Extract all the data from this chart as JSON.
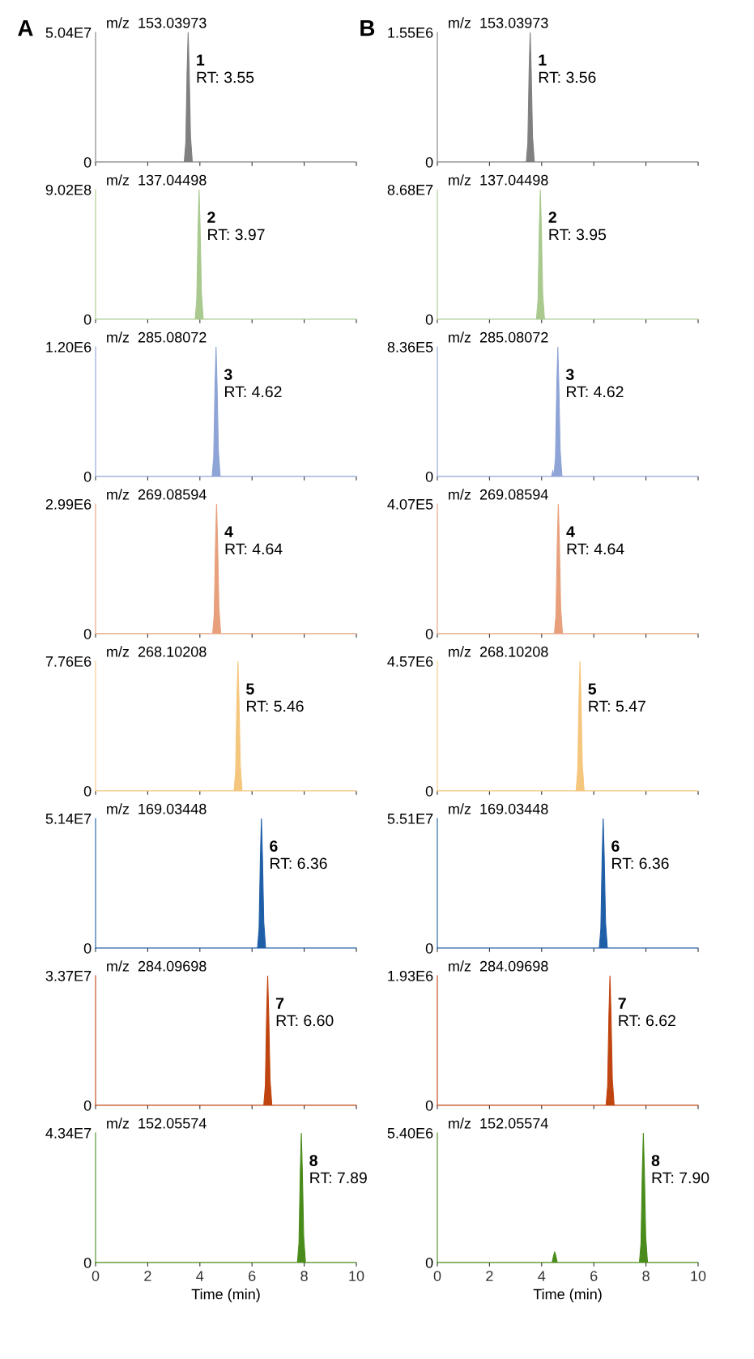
{
  "chart_data": [
    {
      "type": "area",
      "title": "m/z  153.03973",
      "annotations": [
        "A",
        "1",
        "RT: 3.55"
      ],
      "xlim": [
        0,
        10
      ],
      "xticks": [
        0,
        2,
        4,
        6,
        8,
        10
      ],
      "ylim": [
        0,
        50400000.0
      ],
      "yticks": [
        0,
        {
          "value": 50400000.0,
          "label": "5.04E7"
        }
      ],
      "tick_labels": "y",
      "series": [
        {
          "color": "#808080",
          "x": [
            0,
            3.4,
            3.46,
            3.51,
            3.55,
            3.59,
            3.64,
            3.71,
            10
          ],
          "values": [
            0,
            0,
            7600000.0,
            35300000.0,
            50400000.0,
            35300000.0,
            10100000.0,
            0,
            0
          ]
        }
      ]
    },
    {
      "type": "area",
      "title": "m/z  153.03973",
      "annotations": [
        "B",
        "1",
        "RT: 3.56"
      ],
      "xlim": [
        0,
        10
      ],
      "xticks": [
        0,
        2,
        4,
        6,
        8,
        10
      ],
      "ylim": [
        0,
        1550000.0
      ],
      "yticks": [
        0,
        {
          "value": 1550000.0,
          "label": "1.55E6"
        }
      ],
      "tick_labels": "y",
      "series": [
        {
          "color": "#808080",
          "x": [
            0,
            3.41,
            3.47,
            3.52,
            3.56,
            3.6,
            3.65,
            3.72,
            10
          ],
          "values": [
            0,
            0,
            230000.0,
            1090000.0,
            1550000.0,
            1090000.0,
            310000.0,
            0,
            0
          ]
        }
      ]
    },
    {
      "type": "area",
      "title": "m/z  137.04498",
      "annotations": [
        "2",
        "RT: 3.97"
      ],
      "xlim": [
        0,
        10
      ],
      "xticks": [
        0,
        2,
        4,
        6,
        8,
        10
      ],
      "ylim": [
        0,
        902000000.0
      ],
      "yticks": [
        0,
        {
          "value": 902000000.0,
          "label": "9.02E8"
        }
      ],
      "tick_labels": "y",
      "series": [
        {
          "color": "#a9c98f",
          "x": [
            0,
            3.82,
            3.88,
            3.93,
            3.97,
            4.01,
            4.06,
            4.13,
            10
          ],
          "values": [
            0,
            0,
            135000000.0,
            631000000.0,
            902000000.0,
            631000000.0,
            180000000.0,
            0,
            0
          ]
        }
      ]
    },
    {
      "type": "area",
      "title": "m/z  137.04498",
      "annotations": [
        "2",
        "RT: 3.95"
      ],
      "xlim": [
        0,
        10
      ],
      "xticks": [
        0,
        2,
        4,
        6,
        8,
        10
      ],
      "ylim": [
        0,
        86800000.0
      ],
      "yticks": [
        0,
        {
          "value": 86800000.0,
          "label": "8.68E7"
        }
      ],
      "tick_labels": "y",
      "series": [
        {
          "color": "#a9c98f",
          "x": [
            0,
            3.8,
            3.86,
            3.91,
            3.95,
            3.99,
            4.04,
            4.11,
            10
          ],
          "values": [
            0,
            0,
            13000000.0,
            60800000.0,
            86800000.0,
            60800000.0,
            17400000.0,
            0,
            0
          ]
        }
      ]
    },
    {
      "type": "area",
      "title": "m/z  285.08072",
      "annotations": [
        "3",
        "RT: 4.62"
      ],
      "xlim": [
        0,
        10
      ],
      "xticks": [
        0,
        2,
        4,
        6,
        8,
        10
      ],
      "ylim": [
        0,
        1200000.0
      ],
      "yticks": [
        0,
        {
          "value": 1200000.0,
          "label": "1.20E6"
        }
      ],
      "tick_labels": "y",
      "series": [
        {
          "color": "#8ea4d6",
          "x": [
            0,
            4.47,
            4.53,
            4.58,
            4.62,
            4.66,
            4.71,
            4.78,
            10
          ],
          "values": [
            0,
            0,
            180000.0,
            840000.0,
            1200000.0,
            840000.0,
            240000.0,
            0,
            0
          ]
        }
      ]
    },
    {
      "type": "area",
      "title": "m/z  285.08072",
      "annotations": [
        "3",
        "RT: 4.62"
      ],
      "xlim": [
        0,
        10
      ],
      "xticks": [
        0,
        2,
        4,
        6,
        8,
        10
      ],
      "ylim": [
        0,
        836000.0
      ],
      "yticks": [
        0,
        {
          "value": 836000.0,
          "label": "8.36E5"
        }
      ],
      "tick_labels": "y",
      "series": [
        {
          "color": "#8ea4d6",
          "x": [
            0,
            4.38,
            4.43,
            4.46,
            4.47,
            4.53,
            4.58,
            4.62,
            4.66,
            4.71,
            4.78,
            10
          ],
          "values": [
            0,
            0,
            40000.0,
            0,
            0,
            125000.0,
            585000.0,
            836000.0,
            585000.0,
            167000.0,
            0,
            0
          ]
        }
      ]
    },
    {
      "type": "area",
      "title": "m/z  269.08594",
      "annotations": [
        "4",
        "RT: 4.64"
      ],
      "xlim": [
        0,
        10
      ],
      "xticks": [
        0,
        2,
        4,
        6,
        8,
        10
      ],
      "ylim": [
        0,
        2990000.0
      ],
      "yticks": [
        0,
        {
          "value": 2990000.0,
          "label": "2.99E6"
        }
      ],
      "tick_labels": "y",
      "series": [
        {
          "color": "#e8a07c",
          "x": [
            0,
            4.49,
            4.55,
            4.6,
            4.64,
            4.68,
            4.73,
            4.8,
            10
          ],
          "values": [
            0,
            0,
            450000.0,
            2090000.0,
            2990000.0,
            2090000.0,
            600000.0,
            0,
            0
          ]
        }
      ]
    },
    {
      "type": "area",
      "title": "m/z  269.08594",
      "annotations": [
        "4",
        "RT: 4.64"
      ],
      "xlim": [
        0,
        10
      ],
      "xticks": [
        0,
        2,
        4,
        6,
        8,
        10
      ],
      "ylim": [
        0,
        407000.0
      ],
      "yticks": [
        0,
        {
          "value": 407000.0,
          "label": "4.07E5"
        }
      ],
      "tick_labels": "y",
      "series": [
        {
          "color": "#e8a07c",
          "x": [
            0,
            4.49,
            4.55,
            4.6,
            4.64,
            4.68,
            4.73,
            4.8,
            10
          ],
          "values": [
            0,
            0,
            61000.0,
            285000.0,
            407000.0,
            285000.0,
            81000.0,
            0,
            0
          ]
        }
      ]
    },
    {
      "type": "area",
      "title": "m/z  268.10208",
      "annotations": [
        "5",
        "RT: 5.46"
      ],
      "xlim": [
        0,
        10
      ],
      "xticks": [
        0,
        2,
        4,
        6,
        8,
        10
      ],
      "ylim": [
        0,
        7760000.0
      ],
      "yticks": [
        0,
        {
          "value": 7760000.0,
          "label": "7.76E6"
        }
      ],
      "tick_labels": "y",
      "series": [
        {
          "color": "#f5c77e",
          "x": [
            0,
            5.31,
            5.37,
            5.42,
            5.46,
            5.5,
            5.55,
            5.62,
            10
          ],
          "values": [
            0,
            0,
            1160000.0,
            5430000.0,
            7760000.0,
            5430000.0,
            1550000.0,
            0,
            0
          ]
        }
      ]
    },
    {
      "type": "area",
      "title": "m/z  268.10208",
      "annotations": [
        "5",
        "RT: 5.47"
      ],
      "xlim": [
        0,
        10
      ],
      "xticks": [
        0,
        2,
        4,
        6,
        8,
        10
      ],
      "ylim": [
        0,
        4570000.0
      ],
      "yticks": [
        0,
        {
          "value": 4570000.0,
          "label": "4.57E6"
        }
      ],
      "tick_labels": "y",
      "series": [
        {
          "color": "#f5c77e",
          "x": [
            0,
            5.32,
            5.38,
            5.43,
            5.47,
            5.51,
            5.56,
            5.63,
            10
          ],
          "values": [
            0,
            0,
            690000.0,
            3200000.0,
            4570000.0,
            3200000.0,
            910000.0,
            0,
            0
          ]
        }
      ]
    },
    {
      "type": "area",
      "title": "m/z  169.03448",
      "annotations": [
        "6",
        "RT: 6.36"
      ],
      "xlim": [
        0,
        10
      ],
      "xticks": [
        0,
        2,
        4,
        6,
        8,
        10
      ],
      "ylim": [
        0,
        51400000.0
      ],
      "yticks": [
        0,
        {
          "value": 51400000.0,
          "label": "5.14E7"
        }
      ],
      "tick_labels": "y",
      "series": [
        {
          "color": "#1f5fa8",
          "x": [
            0,
            6.21,
            6.27,
            6.32,
            6.36,
            6.4,
            6.45,
            6.52,
            10
          ],
          "values": [
            0,
            0,
            7700000.0,
            36000000.0,
            51400000.0,
            36000000.0,
            10300000.0,
            0,
            0
          ]
        }
      ]
    },
    {
      "type": "area",
      "title": "m/z  169.03448",
      "annotations": [
        "6",
        "RT: 6.36"
      ],
      "xlim": [
        0,
        10
      ],
      "xticks": [
        0,
        2,
        4,
        6,
        8,
        10
      ],
      "ylim": [
        0,
        55100000.0
      ],
      "yticks": [
        0,
        {
          "value": 55100000.0,
          "label": "5.51E7"
        }
      ],
      "tick_labels": "y",
      "series": [
        {
          "color": "#1f5fa8",
          "x": [
            0,
            6.21,
            6.27,
            6.32,
            6.36,
            6.4,
            6.45,
            6.52,
            10
          ],
          "values": [
            0,
            0,
            8300000.0,
            38600000.0,
            55100000.0,
            38600000.0,
            11000000.0,
            0,
            0
          ]
        }
      ]
    },
    {
      "type": "area",
      "title": "m/z  284.09698",
      "annotations": [
        "7",
        "RT: 6.60"
      ],
      "xlim": [
        0,
        10
      ],
      "xticks": [
        0,
        2,
        4,
        6,
        8,
        10
      ],
      "ylim": [
        0,
        33700000.0
      ],
      "yticks": [
        0,
        {
          "value": 33700000.0,
          "label": "3.37E7"
        }
      ],
      "tick_labels": "y",
      "series": [
        {
          "color": "#c0440f",
          "x": [
            0,
            6.45,
            6.51,
            6.56,
            6.6,
            6.64,
            6.69,
            6.76,
            10
          ],
          "values": [
            0,
            0,
            5100000.0,
            23600000.0,
            33700000.0,
            23600000.0,
            6700000.0,
            0,
            0
          ]
        }
      ]
    },
    {
      "type": "area",
      "title": "m/z  284.09698",
      "annotations": [
        "7",
        "RT: 6.62"
      ],
      "xlim": [
        0,
        10
      ],
      "xticks": [
        0,
        2,
        4,
        6,
        8,
        10
      ],
      "ylim": [
        0,
        1930000.0
      ],
      "yticks": [
        0,
        {
          "value": 1930000.0,
          "label": "1.93E6"
        }
      ],
      "tick_labels": "y",
      "series": [
        {
          "color": "#c0440f",
          "x": [
            0,
            6.47,
            6.53,
            6.58,
            6.62,
            6.66,
            6.71,
            6.78,
            10
          ],
          "values": [
            0,
            0,
            290000.0,
            1350000.0,
            1930000.0,
            1350000.0,
            390000.0,
            0,
            0
          ]
        }
      ]
    },
    {
      "type": "area",
      "title": "m/z  152.05574",
      "annotations": [
        "8",
        "RT: 7.89"
      ],
      "xlabel": "Time (min)",
      "xlim": [
        0,
        10
      ],
      "xticks": [
        0,
        2,
        4,
        6,
        8,
        10
      ],
      "ylim": [
        0,
        43400000.0
      ],
      "yticks": [
        0,
        {
          "value": 43400000.0,
          "label": "4.34E7"
        }
      ],
      "series": [
        {
          "color": "#4a8c1c",
          "x": [
            0,
            7.74,
            7.8,
            7.85,
            7.89,
            7.93,
            7.98,
            8.05,
            10
          ],
          "values": [
            0,
            0,
            6500000.0,
            30400000.0,
            43400000.0,
            30400000.0,
            8700000.0,
            0,
            0
          ]
        }
      ]
    },
    {
      "type": "area",
      "title": "m/z  152.05574",
      "annotations": [
        "8",
        "RT: 7.90"
      ],
      "xlabel": "Time (min)",
      "xlim": [
        0,
        10
      ],
      "xticks": [
        0,
        2,
        4,
        6,
        8,
        10
      ],
      "ylim": [
        0,
        5400000.0
      ],
      "yticks": [
        0,
        {
          "value": 5400000.0,
          "label": "5.40E6"
        }
      ],
      "series": [
        {
          "color": "#4a8c1c",
          "x": [
            0,
            4.4,
            4.46,
            4.5,
            4.54,
            4.6,
            7.75,
            7.81,
            7.86,
            7.9,
            7.94,
            7.99,
            8.06,
            10
          ],
          "values": [
            0,
            0,
            300000.0,
            450000.0,
            300000.0,
            0,
            0,
            810000.0,
            3780000.0,
            5400000.0,
            3780000.0,
            1080000.0,
            0,
            0
          ]
        }
      ]
    }
  ]
}
